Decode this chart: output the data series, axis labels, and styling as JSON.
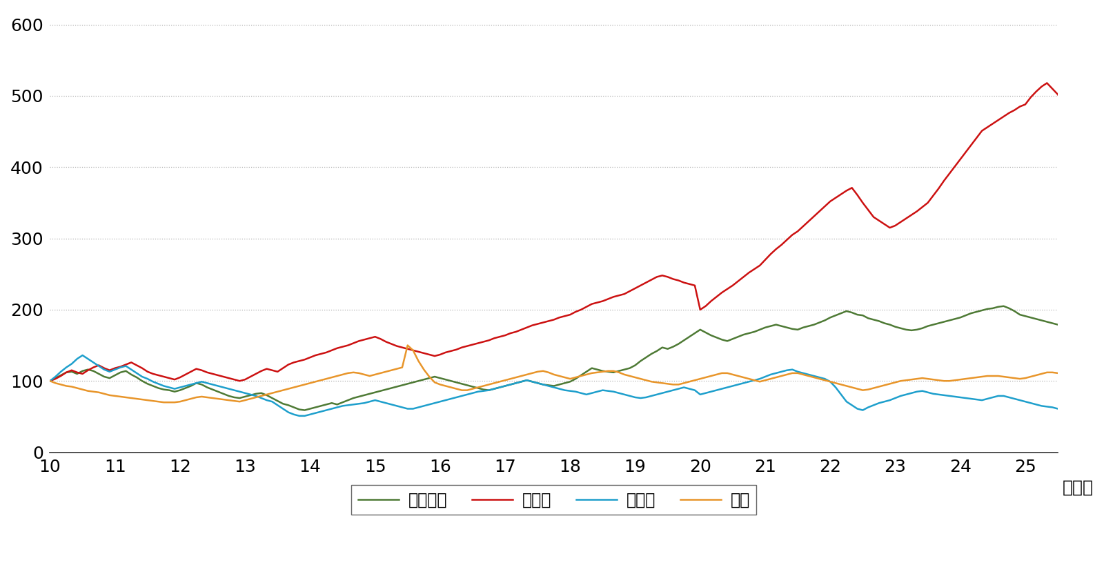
{
  "title": "",
  "xlabel_suffix": "（年）",
  "ylabel": "",
  "xlim": [
    2010.0,
    2025.5
  ],
  "ylim": [
    0,
    620
  ],
  "yticks": [
    0,
    100,
    200,
    300,
    400,
    500,
    600
  ],
  "xtick_positions": [
    2010,
    2011,
    2012,
    2013,
    2014,
    2015,
    2016,
    2017,
    2018,
    2019,
    2020,
    2021,
    2022,
    2023,
    2024,
    2025
  ],
  "xtick_labels": [
    "10",
    "11",
    "12",
    "13",
    "14",
    "15",
    "16",
    "17",
    "18",
    "19",
    "20",
    "21",
    "22",
    "23",
    "24",
    "25"
  ],
  "grid_color": "#aaaaaa",
  "background_color": "#ffffff",
  "line_colors": {
    "brazil": "#4e7a35",
    "india": "#cc1111",
    "russia": "#1e9fcc",
    "china": "#e8952a"
  },
  "line_width": 1.8,
  "legend_labels": {
    "brazil": "ブラジル",
    "india": "インド",
    "russia": "ロシア",
    "china": "中国"
  },
  "brazil": [
    100,
    104,
    108,
    112,
    113,
    110,
    114,
    116,
    114,
    110,
    106,
    104,
    108,
    112,
    114,
    109,
    105,
    100,
    96,
    93,
    90,
    88,
    87,
    85,
    87,
    90,
    93,
    97,
    95,
    91,
    88,
    85,
    82,
    79,
    77,
    76,
    78,
    80,
    82,
    83,
    80,
    76,
    72,
    68,
    66,
    63,
    60,
    59,
    61,
    63,
    65,
    67,
    69,
    67,
    70,
    73,
    76,
    78,
    80,
    82,
    84,
    86,
    88,
    90,
    92,
    94,
    96,
    98,
    100,
    102,
    104,
    106,
    104,
    102,
    100,
    98,
    96,
    94,
    92,
    90,
    88,
    87,
    89,
    91,
    93,
    95,
    97,
    99,
    101,
    99,
    97,
    95,
    94,
    93,
    95,
    97,
    99,
    103,
    108,
    113,
    118,
    116,
    114,
    113,
    112,
    114,
    116,
    118,
    122,
    128,
    133,
    138,
    142,
    147,
    145,
    148,
    152,
    157,
    162,
    167,
    172,
    168,
    164,
    161,
    158,
    156,
    159,
    162,
    165,
    167,
    169,
    172,
    175,
    177,
    179,
    177,
    175,
    173,
    172,
    175,
    177,
    179,
    182,
    185,
    189,
    192,
    195,
    198,
    196,
    193,
    192,
    188,
    186,
    184,
    181,
    179,
    176,
    174,
    172,
    171,
    172,
    174,
    177,
    179,
    181,
    183,
    185,
    187,
    189,
    192,
    195,
    197,
    199,
    201,
    202,
    204,
    205,
    202,
    198,
    193,
    191,
    189,
    187,
    185,
    183,
    181,
    179,
    181
  ],
  "india": [
    100,
    103,
    107,
    112,
    115,
    112,
    110,
    115,
    119,
    122,
    118,
    115,
    118,
    120,
    123,
    126,
    122,
    118,
    113,
    110,
    108,
    106,
    104,
    102,
    105,
    109,
    113,
    117,
    115,
    112,
    110,
    108,
    106,
    104,
    102,
    100,
    102,
    106,
    110,
    114,
    117,
    115,
    113,
    118,
    123,
    126,
    128,
    130,
    133,
    136,
    138,
    140,
    143,
    146,
    148,
    150,
    153,
    156,
    158,
    160,
    162,
    159,
    155,
    152,
    149,
    147,
    145,
    143,
    141,
    139,
    137,
    135,
    137,
    140,
    142,
    144,
    147,
    149,
    151,
    153,
    155,
    157,
    160,
    162,
    164,
    167,
    169,
    172,
    175,
    178,
    180,
    182,
    184,
    186,
    189,
    191,
    193,
    197,
    200,
    204,
    208,
    210,
    212,
    215,
    218,
    220,
    222,
    226,
    230,
    234,
    238,
    242,
    246,
    248,
    246,
    243,
    241,
    238,
    236,
    234,
    200,
    205,
    212,
    218,
    224,
    229,
    234,
    240,
    246,
    252,
    257,
    262,
    270,
    278,
    285,
    291,
    298,
    305,
    310,
    317,
    324,
    331,
    338,
    345,
    352,
    357,
    362,
    367,
    371,
    361,
    350,
    340,
    330,
    325,
    320,
    315,
    318,
    323,
    328,
    333,
    338,
    344,
    350,
    360,
    370,
    381,
    391,
    401,
    411,
    421,
    431,
    441,
    451,
    456,
    461,
    466,
    471,
    476,
    480,
    485,
    488,
    498,
    506,
    513,
    518,
    510,
    502,
    488
  ],
  "russia": [
    100,
    106,
    113,
    119,
    124,
    131,
    136,
    131,
    126,
    121,
    116,
    113,
    116,
    119,
    121,
    116,
    111,
    106,
    103,
    99,
    96,
    93,
    91,
    89,
    91,
    93,
    95,
    97,
    99,
    97,
    95,
    93,
    91,
    89,
    87,
    85,
    83,
    81,
    79,
    76,
    73,
    71,
    66,
    61,
    56,
    53,
    51,
    51,
    53,
    55,
    57,
    59,
    61,
    63,
    65,
    66,
    67,
    68,
    69,
    71,
    73,
    71,
    69,
    67,
    65,
    63,
    61,
    61,
    63,
    65,
    67,
    69,
    71,
    73,
    75,
    77,
    79,
    81,
    83,
    85,
    86,
    87,
    89,
    91,
    93,
    95,
    97,
    99,
    101,
    99,
    97,
    95,
    93,
    91,
    89,
    87,
    86,
    85,
    83,
    81,
    83,
    85,
    87,
    86,
    85,
    83,
    81,
    79,
    77,
    76,
    77,
    79,
    81,
    83,
    85,
    87,
    89,
    91,
    89,
    87,
    81,
    83,
    85,
    87,
    89,
    91,
    93,
    95,
    97,
    99,
    101,
    103,
    106,
    109,
    111,
    113,
    115,
    116,
    113,
    111,
    109,
    107,
    105,
    103,
    99,
    91,
    81,
    71,
    66,
    61,
    59,
    63,
    66,
    69,
    71,
    73,
    76,
    79,
    81,
    83,
    85,
    86,
    84,
    82,
    81,
    80,
    79,
    78,
    77,
    76,
    75,
    74,
    73,
    75,
    77,
    79,
    79,
    77,
    75,
    73,
    71,
    69,
    67,
    65,
    64,
    63,
    61,
    59
  ],
  "china": [
    100,
    97,
    95,
    93,
    92,
    90,
    88,
    86,
    85,
    84,
    82,
    80,
    79,
    78,
    77,
    76,
    75,
    74,
    73,
    72,
    71,
    70,
    70,
    70,
    71,
    73,
    75,
    77,
    78,
    77,
    76,
    75,
    74,
    73,
    72,
    71,
    73,
    75,
    77,
    79,
    81,
    83,
    85,
    87,
    89,
    91,
    93,
    95,
    97,
    99,
    101,
    103,
    105,
    107,
    109,
    111,
    112,
    111,
    109,
    107,
    109,
    111,
    113,
    115,
    117,
    119,
    150,
    143,
    128,
    116,
    106,
    98,
    95,
    93,
    91,
    89,
    87,
    87,
    89,
    91,
    93,
    95,
    97,
    99,
    101,
    103,
    105,
    107,
    109,
    111,
    113,
    114,
    112,
    109,
    107,
    105,
    103,
    105,
    107,
    109,
    111,
    112,
    113,
    114,
    114,
    112,
    109,
    107,
    105,
    103,
    101,
    99,
    98,
    97,
    96,
    95,
    95,
    97,
    99,
    101,
    103,
    105,
    107,
    109,
    111,
    111,
    109,
    107,
    105,
    103,
    101,
    99,
    101,
    103,
    105,
    107,
    109,
    111,
    111,
    109,
    107,
    105,
    103,
    101,
    99,
    97,
    95,
    93,
    91,
    89,
    87,
    88,
    90,
    92,
    94,
    96,
    98,
    100,
    101,
    102,
    103,
    104,
    103,
    102,
    101,
    100,
    100,
    101,
    102,
    103,
    104,
    105,
    106,
    107,
    107,
    107,
    106,
    105,
    104,
    103,
    104,
    106,
    108,
    110,
    112,
    112,
    111,
    110
  ]
}
